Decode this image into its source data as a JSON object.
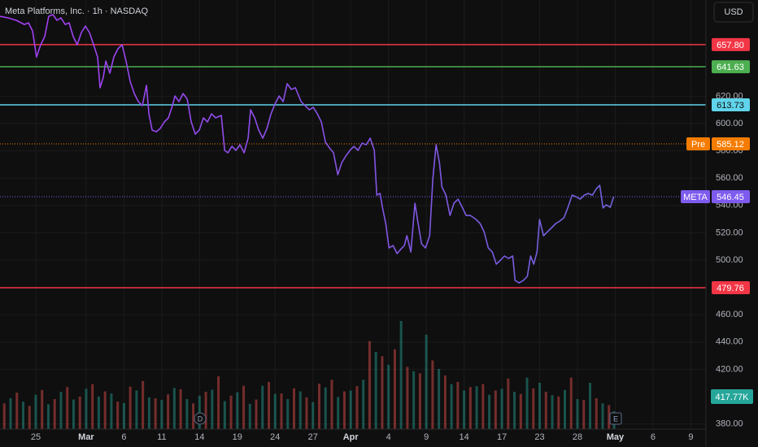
{
  "chart_data": {
    "type": "line",
    "title": "Meta Platforms, Inc. · 1h · NASDAQ",
    "currency": "USD",
    "xlim": [
      -2.84,
      53.2
    ],
    "ylim": [
      376.2,
      690.5
    ],
    "volume_lim": [
      0,
      10000000
    ],
    "grid": true,
    "line_gradient": [
      "#a43ef5",
      "#6f63db"
    ],
    "xticks": [
      {
        "value": 0,
        "label": "25"
      },
      {
        "value": 4,
        "label": "Mar"
      },
      {
        "value": 7,
        "label": "6"
      },
      {
        "value": 10,
        "label": "11"
      },
      {
        "value": 13,
        "label": "14"
      },
      {
        "value": 16,
        "label": "19"
      },
      {
        "value": 19,
        "label": "24"
      },
      {
        "value": 22,
        "label": "27"
      },
      {
        "value": 25,
        "label": "Apr"
      },
      {
        "value": 28,
        "label": "4"
      },
      {
        "value": 31,
        "label": "9"
      },
      {
        "value": 34,
        "label": "14"
      },
      {
        "value": 37,
        "label": "17"
      },
      {
        "value": 40,
        "label": "23"
      },
      {
        "value": 43,
        "label": "28"
      },
      {
        "value": 46,
        "label": "May"
      },
      {
        "value": 49,
        "label": "6"
      },
      {
        "value": 52,
        "label": "9"
      }
    ],
    "yticks": [
      {
        "value": 380,
        "label": "380.00"
      },
      {
        "value": 420,
        "label": "420.00"
      },
      {
        "value": 440,
        "label": "440.00"
      },
      {
        "value": 460,
        "label": "460.00"
      },
      {
        "value": 500,
        "label": "500.00"
      },
      {
        "value": 520,
        "label": "520.00"
      },
      {
        "value": 540,
        "label": "540.00"
      },
      {
        "value": 560,
        "label": "560.00"
      },
      {
        "value": 580,
        "label": "580.00"
      },
      {
        "value": 600,
        "label": "600.00"
      },
      {
        "value": 620,
        "label": "620.00"
      }
    ],
    "levels": [
      {
        "value": 657.8,
        "label": "657.80",
        "color": "#f23645",
        "style": "solid"
      },
      {
        "value": 641.63,
        "label": "641.63",
        "color": "#4caf50",
        "style": "solid"
      },
      {
        "value": 613.73,
        "label": "613.73",
        "color": "#5fd4ea",
        "style": "solid"
      },
      {
        "value": 585.12,
        "label": "585.12",
        "color": "#f57c00",
        "style": "dotted",
        "tag": "Pre"
      },
      {
        "value": 546.45,
        "label": "546.45",
        "color": "#7e5bef",
        "style": "dotted",
        "tag": "META"
      },
      {
        "value": 479.76,
        "label": "479.76",
        "color": "#f23645",
        "style": "solid"
      }
    ],
    "volume_label": "417.77K",
    "events": [
      "D",
      "E"
    ],
    "series": [
      {
        "name": "META",
        "x": [
          -2.84,
          -2.2,
          -1.55,
          -0.9,
          -0.58,
          -0.26,
          0.06,
          0.39,
          0.71,
          1.03,
          1.36,
          1.68,
          2.0,
          2.33,
          2.65,
          2.97,
          3.29,
          3.62,
          3.94,
          4.26,
          4.59,
          4.91,
          5.1,
          5.36,
          5.56,
          5.88,
          6.2,
          6.52,
          6.85,
          7.17,
          7.49,
          7.82,
          8.14,
          8.46,
          8.79,
          8.98,
          9.24,
          9.56,
          9.88,
          10.21,
          10.53,
          10.85,
          11.05,
          11.37,
          11.69,
          12.02,
          12.34,
          12.66,
          12.98,
          13.31,
          13.63,
          13.95,
          14.28,
          14.73,
          14.99,
          15.25,
          15.57,
          15.89,
          16.21,
          16.54,
          16.86,
          17.05,
          17.38,
          17.7,
          18.02,
          18.35,
          18.67,
          18.99,
          19.32,
          19.64,
          19.96,
          20.28,
          20.61,
          21.06,
          21.38,
          21.71,
          22.03,
          22.35,
          22.67,
          23.0,
          23.32,
          23.64,
          23.97,
          24.29,
          24.61,
          24.94,
          25.26,
          25.58,
          25.9,
          26.23,
          26.55,
          26.87,
          27.07,
          27.33,
          27.52,
          27.78,
          28.04,
          28.36,
          28.68,
          29.01,
          29.26,
          29.46,
          29.78,
          30.1,
          30.3,
          30.62,
          30.94,
          31.27,
          31.52,
          31.78,
          32.04,
          32.24,
          32.56,
          32.88,
          33.2,
          33.53,
          33.85,
          34.17,
          34.5,
          34.95,
          35.27,
          35.59,
          35.92,
          36.24,
          36.56,
          36.89,
          37.21,
          37.53,
          37.86,
          38.05,
          38.37,
          38.7,
          39.02,
          39.28,
          39.53,
          39.79,
          39.99,
          40.31,
          40.63,
          40.96,
          41.28,
          41.6,
          41.93,
          42.25,
          42.57,
          42.89,
          43.22,
          43.54,
          43.86,
          44.19,
          44.51,
          44.77,
          45.03,
          45.28,
          45.61,
          45.87
        ],
        "values": [
          678.6,
          677.4,
          675.6,
          672.6,
          673.8,
          667.9,
          648.8,
          657.7,
          663.7,
          678.6,
          679.8,
          675.6,
          677.4,
          672.6,
          673.8,
          663.7,
          657.7,
          666.7,
          671.4,
          666.7,
          657.7,
          648.8,
          626.2,
          633.9,
          645.8,
          636.9,
          648.8,
          654.8,
          657.7,
          645.8,
          631.0,
          622.0,
          616.1,
          613.1,
          628.0,
          607.1,
          595.2,
          594.0,
          596.4,
          601.2,
          604.2,
          613.1,
          620.2,
          616.1,
          622.0,
          617.9,
          601.2,
          592.3,
          595.2,
          604.2,
          601.2,
          607.1,
          604.2,
          606.0,
          580.4,
          578.6,
          583.3,
          580.4,
          584.5,
          578.6,
          589.3,
          610.1,
          604.2,
          595.2,
          589.3,
          596.4,
          607.1,
          614.3,
          620.2,
          616.1,
          629.2,
          625.0,
          626.2,
          616.1,
          613.1,
          610.1,
          611.9,
          607.1,
          601.2,
          586.3,
          582.1,
          578.6,
          562.5,
          571.4,
          576.2,
          580.4,
          583.3,
          580.4,
          585.7,
          584.5,
          589.3,
          580.4,
          547.6,
          548.8,
          538.7,
          526.8,
          508.9,
          510.7,
          504.8,
          508.3,
          510.7,
          517.9,
          505.9,
          541.7,
          529.8,
          511.9,
          508.9,
          517.9,
          559.5,
          584.5,
          571.4,
          553.6,
          547.6,
          532.7,
          541.7,
          544.6,
          538.7,
          532.7,
          532.7,
          529.8,
          526.8,
          520.8,
          508.9,
          505.9,
          497.0,
          500.0,
          503.0,
          501.2,
          503.0,
          485.1,
          483.3,
          485.1,
          488.1,
          503.0,
          497.0,
          505.9,
          529.8,
          517.9,
          520.8,
          523.8,
          526.8,
          528.6,
          531.0,
          538.7,
          547.6,
          546.4,
          544.6,
          547.6,
          548.8,
          547.6,
          552.4,
          554.8,
          538.1,
          540.5,
          538.7,
          546.4
        ]
      }
    ],
    "volume_down": {
      "color": "#ef5350",
      "x": [
        -2.5,
        -1.5,
        -0.5,
        0.5,
        1.5,
        2.5,
        3.5,
        4.5,
        5.5,
        6.5,
        7.5,
        8.5,
        9.5,
        10.5,
        11.5,
        12.5,
        13.5,
        14.5,
        15.5,
        16.5,
        17.5,
        18.5,
        19.5,
        20.5,
        21.5,
        22.5,
        23.5,
        24.5,
        25.5,
        26.5,
        27.5,
        28.5,
        29.5,
        30.5,
        31.5,
        32.5,
        33.5,
        34.5,
        35.5,
        36.5,
        37.5,
        38.5,
        39.5,
        40.5,
        41.5,
        42.5,
        43.5,
        44.5,
        45.5
      ],
      "values": [
        600000,
        850000,
        540000,
        910000,
        700000,
        980000,
        760000,
        1050000,
        880000,
        640000,
        990000,
        1120000,
        720000,
        810000,
        930000,
        600000,
        870000,
        1230000,
        780000,
        1010000,
        690000,
        1100000,
        830000,
        950000,
        740000,
        1060000,
        1150000,
        880000,
        1000000,
        2050000,
        1700000,
        1860000,
        1450000,
        1300000,
        1600000,
        1250000,
        1100000,
        980000,
        1050000,
        900000,
        1180000,
        820000,
        950000,
        870000,
        760000,
        1200000,
        680000,
        720000,
        560000
      ]
    },
    "volume_up": {
      "color": "#26a69a",
      "x": [
        -2.0,
        -1.0,
        0.0,
        1.0,
        2.0,
        3.0,
        4.0,
        5.0,
        6.0,
        7.0,
        8.0,
        9.0,
        10.0,
        11.0,
        12.0,
        13.0,
        14.0,
        15.0,
        16.0,
        17.0,
        18.0,
        19.0,
        20.0,
        21.0,
        22.0,
        23.0,
        24.0,
        25.0,
        26.0,
        27.0,
        28.0,
        29.0,
        30.0,
        31.0,
        32.0,
        33.0,
        34.0,
        35.0,
        36.0,
        37.0,
        38.0,
        39.0,
        40.0,
        41.0,
        42.0,
        43.0,
        44.0,
        45.0,
        45.9
      ],
      "values": [
        720000,
        640000,
        800000,
        580000,
        870000,
        690000,
        940000,
        760000,
        830000,
        610000,
        900000,
        740000,
        680000,
        960000,
        700000,
        780000,
        920000,
        650000,
        860000,
        590000,
        1010000,
        820000,
        700000,
        880000,
        630000,
        970000,
        750000,
        900000,
        1150000,
        1800000,
        1500000,
        2520000,
        1350000,
        2200000,
        1400000,
        1050000,
        900000,
        1000000,
        800000,
        940000,
        870000,
        1200000,
        1080000,
        790000,
        910000,
        700000,
        1080000,
        600000,
        417770
      ]
    }
  }
}
